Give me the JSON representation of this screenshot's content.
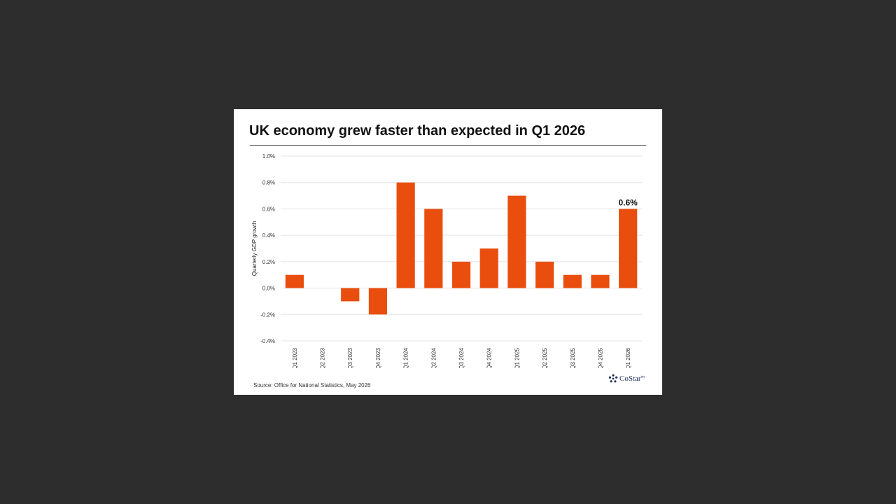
{
  "chart_data": {
    "type": "bar",
    "title": "UK economy grew faster than expected in Q1 2026",
    "ylabel": "Quarterly GDP growth",
    "xlabel": "",
    "categories": [
      "Q1 2023",
      "Q2 2023",
      "Q3 2023",
      "Q4 2023",
      "Q1 2024",
      "Q2 2024",
      "Q3 2024",
      "Q4 2024",
      "Q1 2025",
      "Q2 2025",
      "Q3 2025",
      "Q4 2025",
      "Q1 2026"
    ],
    "values": [
      0.1,
      0.0,
      -0.1,
      -0.2,
      0.8,
      0.6,
      0.2,
      0.3,
      0.7,
      0.2,
      0.1,
      0.1,
      0.6
    ],
    "ylim": [
      -0.4,
      1.0
    ],
    "yticks": [
      1.0,
      0.8,
      0.6,
      0.4,
      0.2,
      0.0,
      -0.2,
      -0.4
    ],
    "ytick_labels": [
      "1.0%",
      "0.8%",
      "0.6%",
      "0.4%",
      "0.2%",
      "0.0%",
      "-0.2%",
      "-0.4%"
    ],
    "grid": true,
    "bar_color": "#e94e0f",
    "annotation": {
      "category": "Q1 2026",
      "value": 0.6,
      "text": "0.6%"
    },
    "source": "Source: Office for National Statistics, May 2026"
  },
  "logo": {
    "text": "CoStar",
    "mark": "tm",
    "brand_color": "#1f2f5a"
  }
}
